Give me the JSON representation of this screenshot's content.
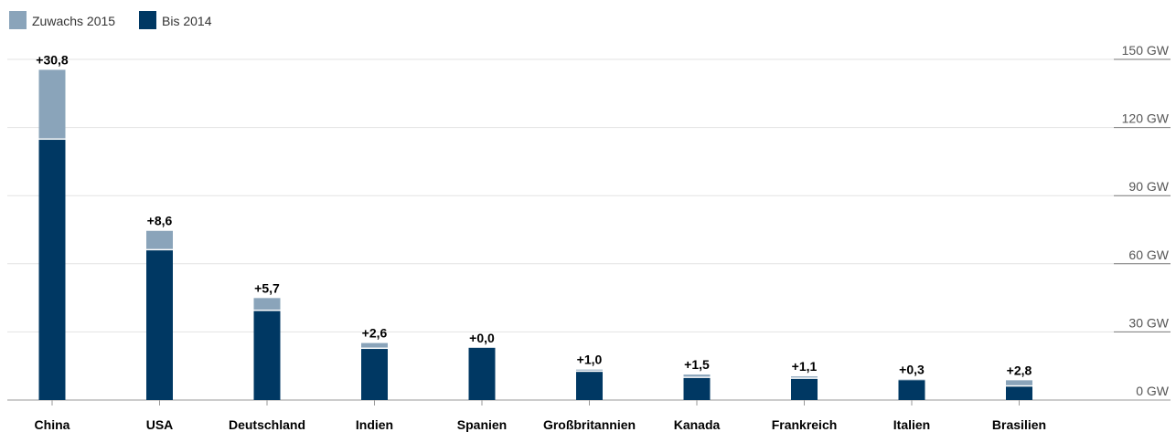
{
  "chart_data": {
    "type": "bar",
    "stacked": true,
    "unit": "GW",
    "legend_position": "top-left",
    "grid": true,
    "ylim": [
      0,
      150
    ],
    "yticks": [
      {
        "value": 0,
        "label": "0 GW"
      },
      {
        "value": 30,
        "label": "30 GW"
      },
      {
        "value": 60,
        "label": "60 GW"
      },
      {
        "value": 90,
        "label": "90 GW"
      },
      {
        "value": 120,
        "label": "120 GW"
      },
      {
        "value": 150,
        "label": "150 GW"
      }
    ],
    "categories": [
      "China",
      "USA",
      "Deutschland",
      "Indien",
      "Spanien",
      "Großbritannien",
      "Kanada",
      "Frankreich",
      "Italien",
      "Brasilien"
    ],
    "series": [
      {
        "name": "Bis 2014",
        "color": "#003863",
        "values": [
          114.6,
          65.9,
          39.2,
          22.5,
          23.0,
          12.4,
          9.7,
          9.3,
          8.7,
          5.9
        ]
      },
      {
        "name": "Zuwachs 2015",
        "color": "#8aa4ba",
        "values": [
          30.8,
          8.6,
          5.7,
          2.6,
          0.0,
          1.0,
          1.5,
          1.1,
          0.3,
          2.8
        ]
      }
    ],
    "data_labels": [
      "+30,8",
      "+8,6",
      "+5,7",
      "+2,6",
      "+0,0",
      "+1,0",
      "+1,5",
      "+1,1",
      "+0,3",
      "+2,8"
    ]
  }
}
